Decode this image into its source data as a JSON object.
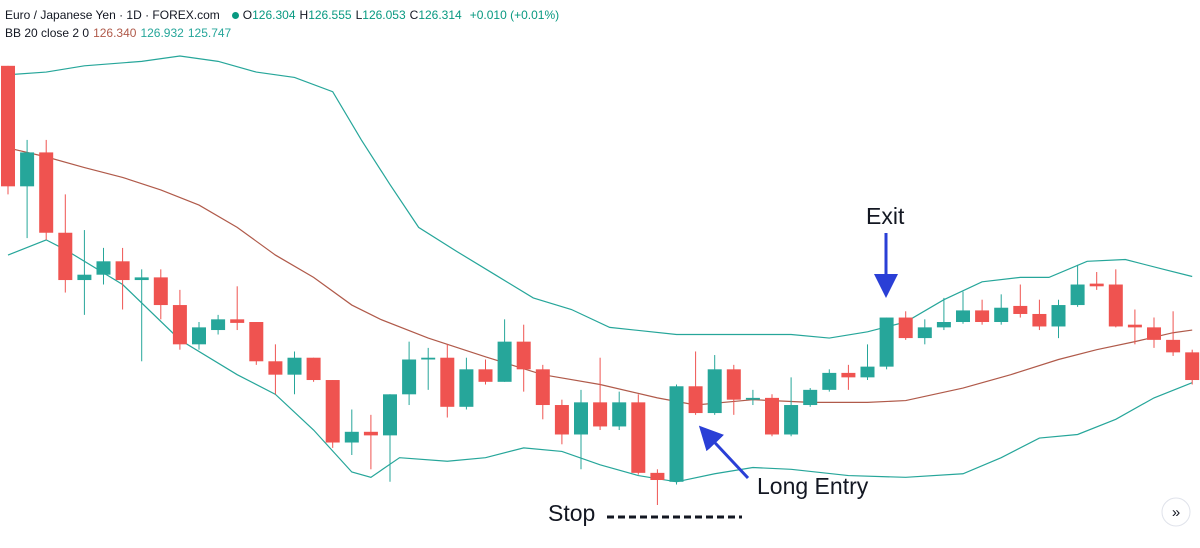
{
  "header": {
    "symbol": "Euro / Japanese Yen · 1D · FOREX.com",
    "ohlc": [
      {
        "label": "O",
        "value": "126.304"
      },
      {
        "label": "H",
        "value": "126.555"
      },
      {
        "label": "L",
        "value": "126.053"
      },
      {
        "label": "C",
        "value": "126.314"
      }
    ],
    "change": "+0.010 (+0.01%)"
  },
  "indicator": {
    "name": "BB 20 close 2 0",
    "values": [
      {
        "text": "126.340",
        "color": "#b05a4a"
      },
      {
        "text": "126.932",
        "color": "#26a69a"
      },
      {
        "text": "125.747",
        "color": "#26a69a"
      }
    ]
  },
  "chart_data": {
    "type": "candlestick",
    "up_color": "#26a69a",
    "down_color": "#ef5350",
    "candles": {
      "open": [
        129.3,
        127.95,
        128.33,
        127.43,
        126.9,
        126.96,
        127.11,
        126.9,
        126.93,
        126.62,
        126.18,
        126.34,
        126.46,
        126.43,
        125.99,
        125.84,
        126.03,
        125.78,
        125.08,
        125.2,
        125.16,
        125.62,
        126.01,
        126.03,
        125.48,
        125.9,
        125.76,
        126.21,
        125.9,
        125.5,
        125.17,
        125.53,
        125.26,
        125.53,
        124.74,
        124.64,
        125.71,
        125.41,
        125.9,
        125.56,
        125.58,
        125.17,
        125.5,
        125.67,
        125.86,
        125.81,
        125.93,
        126.48,
        126.25,
        126.37,
        126.43,
        126.56,
        126.43,
        126.61,
        126.52,
        126.38,
        126.62,
        126.86,
        126.85,
        126.4,
        126.37,
        126.23,
        126.09
      ],
      "high": [
        129.3,
        128.47,
        128.47,
        127.86,
        127.46,
        127.26,
        127.26,
        127.02,
        127.02,
        126.79,
        126.43,
        126.51,
        126.83,
        126.43,
        126.18,
        126.1,
        126.03,
        125.78,
        125.45,
        125.39,
        125.62,
        126.21,
        126.14,
        126.18,
        126.03,
        126.01,
        126.46,
        126.4,
        125.95,
        125.56,
        125.67,
        126.03,
        125.65,
        125.62,
        124.78,
        125.73,
        126.1,
        126.06,
        125.95,
        125.67,
        125.62,
        125.81,
        125.69,
        125.9,
        125.95,
        126.18,
        126.48,
        126.55,
        126.46,
        126.7,
        126.77,
        126.68,
        126.74,
        126.85,
        126.68,
        126.68,
        127.07,
        126.99,
        127.02,
        126.57,
        126.48,
        126.55,
        126.12
      ],
      "low": [
        127.86,
        127.37,
        127.35,
        126.76,
        126.51,
        126.85,
        126.57,
        125.99,
        126.46,
        126.12,
        126.12,
        126.29,
        126.34,
        125.95,
        125.62,
        125.62,
        125.76,
        125.02,
        124.94,
        124.78,
        124.64,
        125.5,
        125.67,
        125.36,
        125.45,
        125.73,
        125.76,
        125.65,
        125.34,
        125.06,
        124.78,
        125.22,
        125.22,
        124.72,
        124.38,
        124.61,
        125.39,
        125.39,
        125.39,
        125.5,
        125.15,
        125.15,
        125.48,
        125.65,
        125.67,
        125.78,
        125.9,
        126.23,
        126.18,
        126.34,
        126.41,
        126.4,
        126.4,
        126.48,
        126.34,
        126.25,
        126.6,
        126.79,
        126.37,
        126.18,
        126.14,
        126.05,
        125.73
      ],
      "close": [
        127.95,
        128.33,
        127.43,
        126.9,
        126.96,
        127.11,
        126.9,
        126.93,
        126.62,
        126.18,
        126.37,
        126.46,
        126.42,
        125.99,
        125.84,
        126.03,
        125.78,
        125.08,
        125.2,
        125.16,
        125.62,
        126.01,
        126.03,
        125.48,
        125.9,
        125.76,
        126.21,
        125.9,
        125.5,
        125.17,
        125.53,
        125.26,
        125.53,
        124.74,
        124.66,
        125.71,
        125.41,
        125.9,
        125.56,
        125.58,
        125.17,
        125.5,
        125.67,
        125.86,
        125.81,
        125.93,
        126.48,
        126.25,
        126.37,
        126.43,
        126.56,
        126.43,
        126.59,
        126.52,
        126.38,
        126.62,
        126.85,
        126.83,
        126.38,
        126.37,
        126.23,
        126.09,
        125.78
      ]
    },
    "bands": [
      {
        "color": "#26a69a",
        "x": [
          0,
          2,
          4,
          7,
          9,
          11,
          13,
          15,
          17,
          18.5,
          20,
          21.5,
          23.5,
          25.5,
          27.5,
          29.5,
          31.5,
          35,
          38,
          41,
          43,
          45,
          47,
          49,
          51,
          53,
          54.5,
          56.5,
          58.5,
          60.5,
          62
        ],
        "values": [
          129.2,
          129.23,
          129.3,
          129.35,
          129.41,
          129.35,
          129.23,
          129.17,
          129.01,
          128.47,
          127.97,
          127.49,
          127.22,
          126.96,
          126.7,
          126.57,
          126.37,
          126.29,
          126.29,
          126.29,
          126.25,
          126.32,
          126.43,
          126.68,
          126.88,
          126.93,
          126.93,
          127.11,
          127.13,
          127.02,
          126.94
        ]
      },
      {
        "color": "#b05a4a",
        "x": [
          0,
          2,
          4,
          6,
          8,
          10,
          12,
          14,
          16,
          18,
          19.5,
          22,
          25,
          28,
          31,
          34,
          36,
          39,
          42,
          45,
          47,
          50,
          52.5,
          55,
          57,
          59,
          61,
          62
        ],
        "values": [
          128.38,
          128.28,
          128.16,
          128.05,
          127.91,
          127.74,
          127.49,
          127.18,
          126.93,
          126.62,
          126.46,
          126.25,
          126.04,
          125.84,
          125.73,
          125.58,
          125.5,
          125.56,
          125.53,
          125.53,
          125.55,
          125.69,
          125.84,
          126.01,
          126.12,
          126.21,
          126.31,
          126.34
        ]
      },
      {
        "color": "#26a69a",
        "x": [
          0,
          2,
          3,
          6,
          9,
          12,
          14,
          16,
          18,
          19,
          20.5,
          23,
          25,
          27,
          29,
          31,
          33,
          35,
          37,
          39,
          41,
          44,
          47,
          50,
          52,
          54,
          56,
          58,
          60,
          62
        ],
        "values": [
          127.18,
          127.35,
          127.24,
          126.85,
          126.23,
          125.84,
          125.62,
          125.22,
          124.75,
          124.69,
          124.91,
          124.87,
          124.91,
          125.02,
          124.98,
          124.83,
          124.71,
          124.64,
          124.73,
          124.8,
          124.78,
          124.71,
          124.69,
          124.73,
          124.91,
          125.13,
          125.17,
          125.34,
          125.58,
          125.75
        ]
      }
    ]
  },
  "annotations": {
    "exit": "Exit",
    "long_entry": "Long Entry",
    "stop": "Stop"
  },
  "button": "»"
}
